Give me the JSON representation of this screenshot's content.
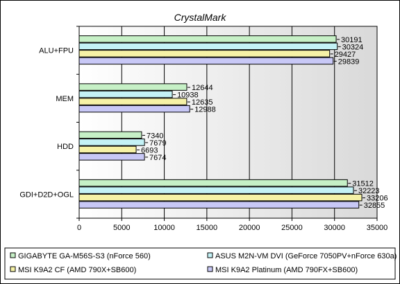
{
  "chart_data": {
    "type": "bar",
    "orientation": "horizontal",
    "title": "CrystalMark",
    "categories": [
      "ALU+FPU",
      "MEM",
      "HDD",
      "GDI+D2D+OGL"
    ],
    "series": [
      {
        "name": "GIGABYTE GA-M56S-S3 (nForce 560)",
        "color": "#c6f0c6",
        "values": [
          30191,
          12644,
          7340,
          31512
        ]
      },
      {
        "name": "ASUS M2N-VM DVI (GeForce 7050PV+nForce 630a)",
        "color": "#c4f2f6",
        "values": [
          30324,
          10938,
          7679,
          32223
        ]
      },
      {
        "name": "MSI K9A2 CF (AMD 790X+SB600)",
        "color": "#f6f2a6",
        "values": [
          29427,
          12635,
          6693,
          33206
        ]
      },
      {
        "name": "MSI K9A2 Platinum (AMD 790FX+SB600)",
        "color": "#c8c8f6",
        "values": [
          29839,
          12988,
          7674,
          32855
        ]
      }
    ],
    "xlim": [
      0,
      35000
    ],
    "xticks": [
      0,
      5000,
      10000,
      15000,
      20000,
      25000,
      30000,
      35000
    ],
    "grid": true,
    "legend_position": "bottom"
  }
}
